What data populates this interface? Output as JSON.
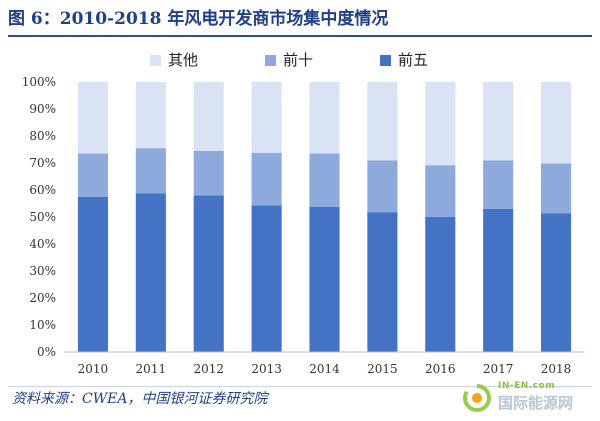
{
  "figure": {
    "title": "图 6：2010-2018 年风电开发商市场集中度情况",
    "source": "资料来源：CWEA，中国银河证券研究院"
  },
  "watermark": {
    "url": "IN-EN.com",
    "name": "国际能源网"
  },
  "colors": {
    "title": "#1f3f86",
    "top5": "#4472c4",
    "top10": "#8ea9db",
    "other": "#dae3f3",
    "axis": "#bfbfbf"
  },
  "chart_data": {
    "type": "bar",
    "stacked": true,
    "categories": [
      "2010",
      "2011",
      "2012",
      "2013",
      "2014",
      "2015",
      "2016",
      "2017",
      "2018"
    ],
    "series": [
      {
        "name": "前五",
        "color": "#4472c4",
        "values": [
          57.5,
          58.8,
          58.0,
          54.3,
          53.8,
          51.8,
          50.0,
          53.0,
          51.3
        ]
      },
      {
        "name": "前十",
        "color": "#8ea9db",
        "values": [
          16.0,
          16.7,
          16.5,
          19.5,
          19.7,
          19.2,
          19.2,
          18.0,
          18.5
        ]
      },
      {
        "name": "其他",
        "color": "#dae3f3",
        "values": [
          26.5,
          24.5,
          25.5,
          26.2,
          26.5,
          29.0,
          30.8,
          29.0,
          30.2
        ]
      }
    ],
    "legend_order": [
      "其他",
      "前十",
      "前五"
    ],
    "yticks": [
      "0%",
      "10%",
      "20%",
      "30%",
      "40%",
      "50%",
      "60%",
      "70%",
      "80%",
      "90%",
      "100%"
    ],
    "ylim": [
      0,
      100
    ],
    "grid": false,
    "legend_position": "top-left"
  }
}
